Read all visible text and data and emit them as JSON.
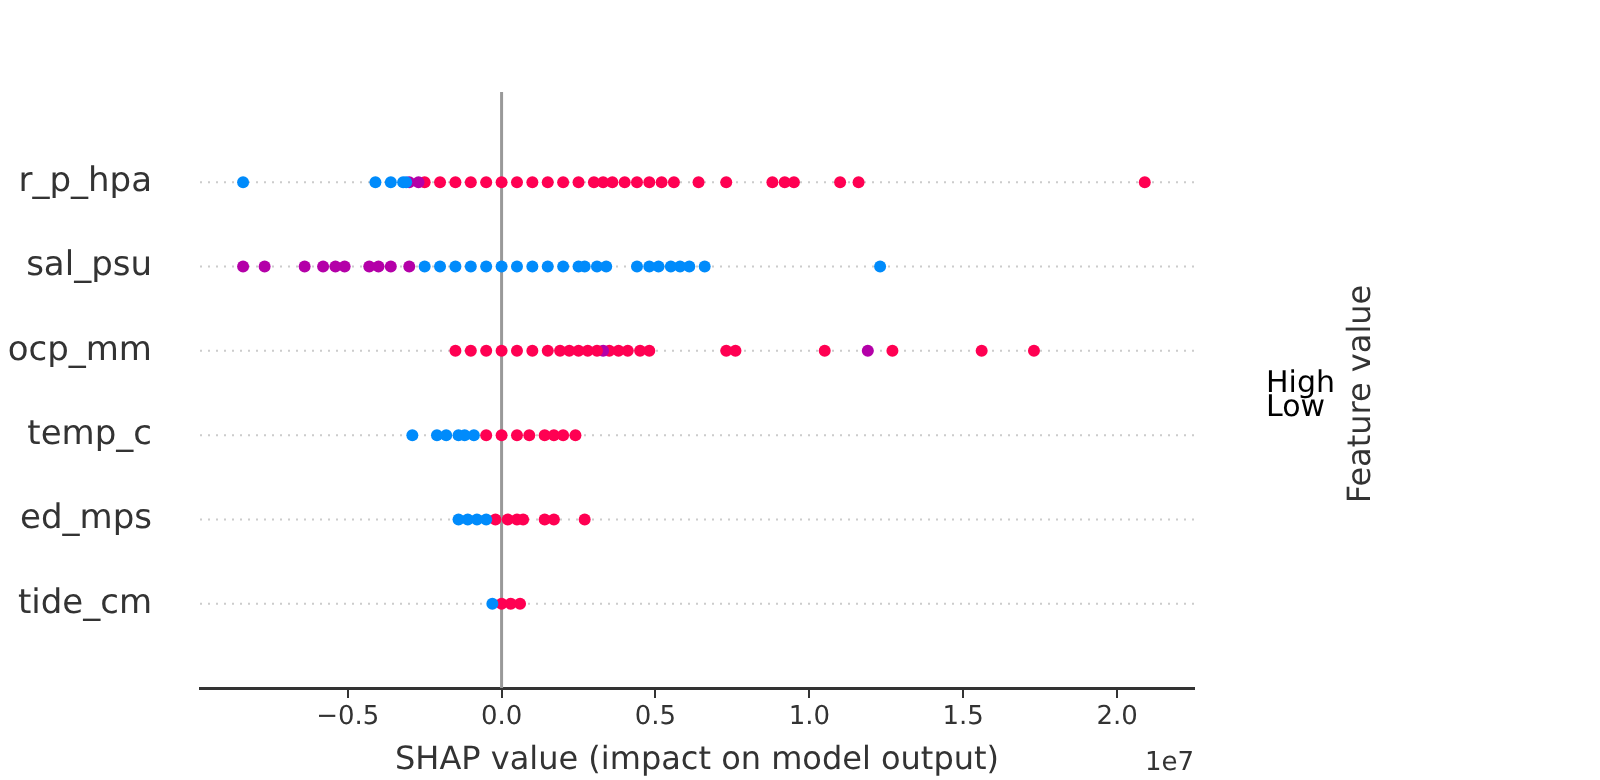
{
  "chart_data": {
    "type": "scatter",
    "orientation": "horizontal",
    "xlabel": "SHAP value (impact on model output)",
    "clabel": "Feature value",
    "annotations": [
      "High",
      "Low",
      "1e7"
    ],
    "categories": [
      "r_p_hpa",
      "sal_psu",
      "ocp_mm",
      "temp_c",
      "ed_mps",
      "tide_cm"
    ],
    "xlim": [
      -0.98,
      2.25
    ],
    "xticks": [
      {
        "value": -0.5,
        "label": "−0.5"
      },
      {
        "value": 0,
        "label": "0.0"
      },
      {
        "value": 0.5,
        "label": "0.5"
      },
      {
        "value": 1,
        "label": "1.0"
      },
      {
        "value": 1.5,
        "label": "1.5"
      },
      {
        "value": 2,
        "label": "2.0"
      }
    ],
    "grid": "y",
    "line_style": "dotted",
    "marker": "circle",
    "legend": false,
    "ref_lines": [
      {
        "axis": "x",
        "value": 0,
        "color": "#999999"
      }
    ],
    "series": [
      {
        "values": [
          -0.84,
          -0.84,
          -0.15,
          -0.29,
          -0.14,
          -0.03
        ],
        "colors": [
          "#008bfb",
          "#b400a8",
          "#ff0052",
          "#008bfb",
          "#008bfb",
          "#008bfb"
        ]
      },
      {
        "values": [
          -0.41,
          -0.77,
          -0.1,
          -0.21,
          -0.11,
          0
        ],
        "colors": [
          "#008bfb",
          "#b400a8",
          "#ff0052",
          "#008bfb",
          "#008bfb",
          "#ff0052"
        ]
      },
      {
        "values": [
          -0.36,
          -0.64,
          -0.05,
          -0.18,
          -0.08,
          0.03
        ],
        "colors": [
          "#008bfb",
          "#b400a8",
          "#ff0052",
          "#008bfb",
          "#008bfb",
          "#ff0052"
        ]
      },
      {
        "values": [
          -0.32,
          -0.58,
          0,
          -0.14,
          -0.05,
          0.06
        ],
        "colors": [
          "#008bfb",
          "#b400a8",
          "#ff0052",
          "#008bfb",
          "#008bfb",
          "#ff0052"
        ]
      },
      {
        "values": [
          -0.31,
          -0.54,
          0.05,
          -0.12,
          -0.02,
          null
        ],
        "colors": [
          "#008bfb",
          "#b400a8",
          "#ff0052",
          "#008bfb",
          "#ff0052",
          null
        ]
      },
      {
        "values": [
          -0.3,
          -0.51,
          0.1,
          -0.09,
          0.02,
          null
        ],
        "colors": [
          "#b400a8",
          "#b400a8",
          "#ff0052",
          "#008bfb",
          "#ff0052",
          null
        ]
      },
      {
        "values": [
          -0.27,
          -0.43,
          0.15,
          -0.05,
          0.05,
          null
        ],
        "colors": [
          "#b400a8",
          "#b400a8",
          "#ff0052",
          "#ff0052",
          "#ff0052",
          null
        ]
      },
      {
        "values": [
          -0.25,
          -0.4,
          0.19,
          0,
          0.07,
          null
        ],
        "colors": [
          "#ff0052",
          "#b400a8",
          "#ff0052",
          "#ff0052",
          "#ff0052",
          null
        ]
      },
      {
        "values": [
          -0.2,
          -0.36,
          0.22,
          0.05,
          0.14,
          null
        ],
        "colors": [
          "#ff0052",
          "#b400a8",
          "#ff0052",
          "#ff0052",
          "#ff0052",
          null
        ]
      },
      {
        "values": [
          -0.15,
          -0.3,
          0.25,
          0.09,
          0.17,
          null
        ],
        "colors": [
          "#ff0052",
          "#b400a8",
          "#ff0052",
          "#ff0052",
          "#ff0052",
          null
        ]
      },
      {
        "values": [
          -0.1,
          -0.25,
          0.28,
          0.14,
          0.27,
          null
        ],
        "colors": [
          "#ff0052",
          "#008bfb",
          "#ff0052",
          "#ff0052",
          "#ff0052",
          null
        ]
      },
      {
        "values": [
          -0.05,
          -0.2,
          0.31,
          0.17,
          null,
          null
        ],
        "colors": [
          "#ff0052",
          "#008bfb",
          "#ff0052",
          "#ff0052",
          null,
          null
        ]
      },
      {
        "values": [
          0,
          -0.15,
          0.33,
          0.2,
          null,
          null
        ],
        "colors": [
          "#ff0052",
          "#008bfb",
          "#b400a8",
          "#ff0052",
          null,
          null
        ]
      },
      {
        "values": [
          0.05,
          -0.1,
          0.35,
          0.24,
          null,
          null
        ],
        "colors": [
          "#ff0052",
          "#008bfb",
          "#ff0052",
          "#ff0052",
          null,
          null
        ]
      },
      {
        "values": [
          0.1,
          -0.05,
          0.38,
          null,
          null,
          null
        ],
        "colors": [
          "#ff0052",
          "#008bfb",
          "#ff0052",
          null,
          null,
          null
        ]
      },
      {
        "values": [
          0.15,
          0,
          0.41,
          null,
          null,
          null
        ],
        "colors": [
          "#ff0052",
          "#008bfb",
          "#ff0052",
          null,
          null,
          null
        ]
      },
      {
        "values": [
          0.2,
          0.05,
          0.45,
          null,
          null,
          null
        ],
        "colors": [
          "#ff0052",
          "#008bfb",
          "#ff0052",
          null,
          null,
          null
        ]
      },
      {
        "values": [
          0.25,
          0.1,
          0.48,
          null,
          null,
          null
        ],
        "colors": [
          "#ff0052",
          "#008bfb",
          "#ff0052",
          null,
          null,
          null
        ]
      },
      {
        "values": [
          0.3,
          0.15,
          0.73,
          null,
          null,
          null
        ],
        "colors": [
          "#ff0052",
          "#008bfb",
          "#ff0052",
          null,
          null,
          null
        ]
      },
      {
        "values": [
          0.33,
          0.2,
          0.76,
          null,
          null,
          null
        ],
        "colors": [
          "#ff0052",
          "#008bfb",
          "#ff0052",
          null,
          null,
          null
        ]
      },
      {
        "values": [
          0.36,
          0.25,
          1.05,
          null,
          null,
          null
        ],
        "colors": [
          "#ff0052",
          "#008bfb",
          "#ff0052",
          null,
          null,
          null
        ]
      },
      {
        "values": [
          0.4,
          0.27,
          1.19,
          null,
          null,
          null
        ],
        "colors": [
          "#ff0052",
          "#008bfb",
          "#b400a8",
          null,
          null,
          null
        ]
      },
      {
        "values": [
          0.44,
          0.31,
          1.27,
          null,
          null,
          null
        ],
        "colors": [
          "#ff0052",
          "#008bfb",
          "#ff0052",
          null,
          null,
          null
        ]
      },
      {
        "values": [
          0.48,
          0.34,
          1.56,
          null,
          null,
          null
        ],
        "colors": [
          "#ff0052",
          "#008bfb",
          "#ff0052",
          null,
          null,
          null
        ]
      },
      {
        "values": [
          0.52,
          0.44,
          1.73,
          null,
          null,
          null
        ],
        "colors": [
          "#ff0052",
          "#008bfb",
          "#ff0052",
          null,
          null,
          null
        ]
      },
      {
        "values": [
          0.56,
          0.48,
          null,
          null,
          null,
          null
        ],
        "colors": [
          "#ff0052",
          "#008bfb",
          null,
          null,
          null,
          null
        ]
      },
      {
        "values": [
          0.64,
          0.51,
          null,
          null,
          null,
          null
        ],
        "colors": [
          "#ff0052",
          "#008bfb",
          null,
          null,
          null,
          null
        ]
      },
      {
        "values": [
          0.73,
          0.55,
          null,
          null,
          null,
          null
        ],
        "colors": [
          "#ff0052",
          "#008bfb",
          null,
          null,
          null,
          null
        ]
      },
      {
        "values": [
          0.88,
          0.58,
          null,
          null,
          null,
          null
        ],
        "colors": [
          "#ff0052",
          "#008bfb",
          null,
          null,
          null,
          null
        ]
      },
      {
        "values": [
          0.92,
          0.61,
          null,
          null,
          null,
          null
        ],
        "colors": [
          "#ff0052",
          "#008bfb",
          null,
          null,
          null,
          null
        ]
      },
      {
        "values": [
          0.95,
          0.66,
          null,
          null,
          null,
          null
        ],
        "colors": [
          "#ff0052",
          "#008bfb",
          null,
          null,
          null,
          null
        ]
      },
      {
        "values": [
          1.1,
          1.23,
          null,
          null,
          null,
          null
        ],
        "colors": [
          "#ff0052",
          "#008bfb",
          null,
          null,
          null,
          null
        ]
      },
      {
        "values": [
          1.16,
          null,
          null,
          null,
          null,
          null
        ],
        "colors": [
          "#ff0052",
          null,
          null,
          null,
          null,
          null
        ]
      },
      {
        "values": [
          2.09,
          null,
          null,
          null,
          null,
          null
        ],
        "colors": [
          "#ff0052",
          null,
          null,
          null,
          null,
          null
        ]
      }
    ]
  }
}
